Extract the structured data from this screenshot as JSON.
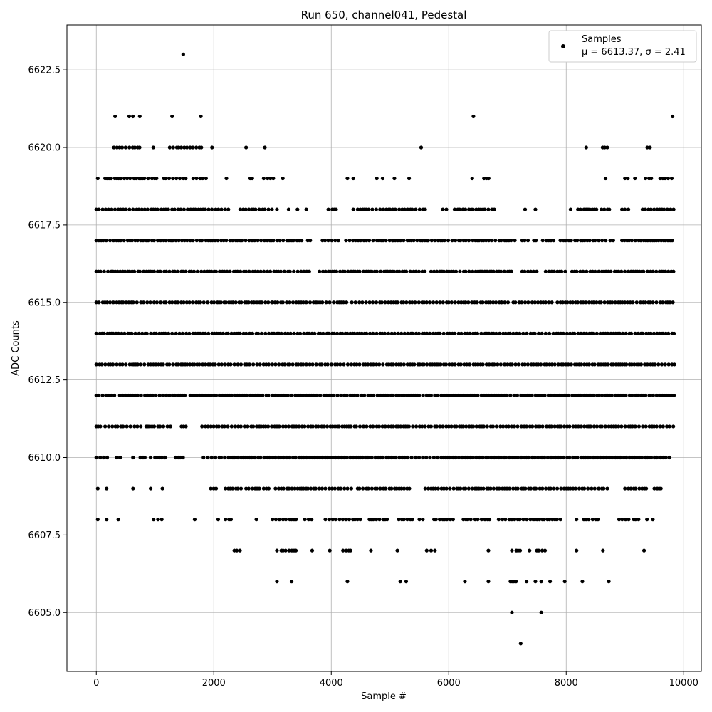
{
  "chart_data": {
    "type": "scatter",
    "title": "Run 650, channel041, Pedestal",
    "xlabel": "Sample #",
    "ylabel": "ADC Counts",
    "xlim": [
      -500,
      10300
    ],
    "ylim": [
      6603.1,
      6623.95
    ],
    "xticks": [
      0,
      2000,
      4000,
      6000,
      8000,
      10000
    ],
    "yticks": [
      6605.0,
      6607.5,
      6610.0,
      6612.5,
      6615.0,
      6617.5,
      6620.0,
      6622.5
    ],
    "grid": true,
    "legend_position": "top-right",
    "marker_color": "#000000",
    "series": [
      {
        "name": "Samples",
        "stats_label": "μ = 6613.37, σ = 2.41",
        "total_samples": 9850,
        "level_ranges": [
          {
            "y": 6623,
            "ranges": [
              [
                1460,
                1500
              ]
            ]
          },
          {
            "y": 6621,
            "ranges": [
              [
                300,
                340
              ],
              [
                560,
                660
              ],
              [
                720,
                760
              ],
              [
                1270,
                1310
              ],
              [
                1760,
                1800
              ],
              [
                6400,
                6440
              ],
              [
                9790,
                9830
              ]
            ]
          },
          {
            "y": 6620,
            "ranges": [
              [
                300,
                760
              ],
              [
                950,
                990
              ],
              [
                1250,
                1800
              ],
              [
                1950,
                1990
              ],
              [
                2530,
                2570
              ],
              [
                2850,
                2890
              ],
              [
                5510,
                5550
              ],
              [
                8320,
                8360
              ],
              [
                8620,
                8720
              ],
              [
                9380,
                9450
              ]
            ]
          },
          {
            "y": 6619,
            "ranges": [
              [
                0,
                50
              ],
              [
                150,
                1050
              ],
              [
                1150,
                1550
              ],
              [
                1650,
                1900
              ],
              [
                2190,
                2240
              ],
              [
                2620,
                2700
              ],
              [
                2850,
                3050
              ],
              [
                3150,
                3200
              ],
              [
                4250,
                4300
              ],
              [
                4350,
                4400
              ],
              [
                4750,
                4800
              ],
              [
                4850,
                4900
              ],
              [
                5050,
                5100
              ],
              [
                5300,
                5350
              ],
              [
                6380,
                6420
              ],
              [
                6600,
                6680
              ],
              [
                8650,
                8690
              ],
              [
                9000,
                9080
              ],
              [
                9150,
                9190
              ],
              [
                9350,
                9450
              ],
              [
                9600,
                9800
              ]
            ]
          },
          {
            "y": 6618,
            "ranges": [
              [
                0,
                1150
              ],
              [
                1150,
                2250
              ],
              [
                2450,
                3050
              ],
              [
                3050,
                3100
              ],
              [
                3250,
                3300
              ],
              [
                3400,
                3450
              ],
              [
                3550,
                3600
              ],
              [
                3950,
                4100
              ],
              [
                4350,
                4400
              ],
              [
                4450,
                5000
              ],
              [
                5000,
                5300
              ],
              [
                5300,
                5600
              ],
              [
                5900,
                6000
              ],
              [
                6100,
                6250
              ],
              [
                6250,
                6750
              ],
              [
                6750,
                6800
              ],
              [
                7280,
                7320
              ],
              [
                7450,
                7500
              ],
              [
                8050,
                8100
              ],
              [
                8200,
                8400
              ],
              [
                8400,
                8550
              ],
              [
                8600,
                8750
              ],
              [
                8950,
                9100
              ],
              [
                9300,
                9500
              ],
              [
                9550,
                9850
              ]
            ]
          },
          {
            "y": 6617,
            "ranges": [
              [
                0,
                3300
              ],
              [
                3300,
                3500
              ],
              [
                3600,
                3700
              ],
              [
                3850,
                4150
              ],
              [
                4250,
                5050
              ],
              [
                5050,
                5550
              ],
              [
                5550,
                5650
              ],
              [
                5650,
                7150
              ],
              [
                7250,
                7350
              ],
              [
                7450,
                7550
              ],
              [
                7600,
                7800
              ],
              [
                7900,
                8100
              ],
              [
                8150,
                8700
              ],
              [
                8750,
                8850
              ],
              [
                8950,
                9850
              ]
            ]
          },
          {
            "y": 6616,
            "ranges": [
              [
                0,
                2550
              ],
              [
                2550,
                3600
              ],
              [
                3600,
                3650
              ],
              [
                3800,
                5650
              ],
              [
                5700,
                7100
              ],
              [
                7250,
                7550
              ],
              [
                7650,
                7800
              ],
              [
                7850,
                8000
              ],
              [
                8100,
                9850
              ]
            ]
          },
          {
            "y": 6615,
            "ranges": [
              [
                0,
                3000
              ],
              [
                3000,
                3350
              ],
              [
                3350,
                4300
              ],
              [
                4350,
                5850
              ],
              [
                5850,
                6900
              ],
              [
                6900,
                7050
              ],
              [
                7100,
                7250
              ],
              [
                7300,
                7650
              ],
              [
                7650,
                7800
              ],
              [
                7850,
                9850
              ]
            ]
          },
          {
            "y": 6614,
            "ranges": [
              [
                0,
                9850
              ]
            ]
          },
          {
            "y": 6613,
            "ranges": [
              [
                0,
                9850
              ]
            ]
          },
          {
            "y": 6612,
            "ranges": [
              [
                0,
                350
              ],
              [
                400,
                1250
              ],
              [
                1300,
                1550
              ],
              [
                1600,
                9850
              ]
            ]
          },
          {
            "y": 6611,
            "ranges": [
              [
                0,
                100
              ],
              [
                150,
                600
              ],
              [
                650,
                800
              ],
              [
                850,
                1300
              ],
              [
                1450,
                1550
              ],
              [
                1800,
                9850
              ]
            ]
          },
          {
            "y": 6610,
            "ranges": [
              [
                0,
                200
              ],
              [
                350,
                450
              ],
              [
                600,
                650
              ],
              [
                750,
                850
              ],
              [
                900,
                950
              ],
              [
                1000,
                1200
              ],
              [
                1350,
                1500
              ],
              [
                1800,
                1850
              ],
              [
                1900,
                2350
              ],
              [
                2350,
                2650
              ],
              [
                2700,
                9800
              ]
            ]
          },
          {
            "y": 6609,
            "ranges": [
              [
                0,
                50
              ],
              [
                150,
                200
              ],
              [
                600,
                650
              ],
              [
                900,
                950
              ],
              [
                1100,
                1150
              ],
              [
                1950,
                2050
              ],
              [
                2200,
                2500
              ],
              [
                2550,
                2800
              ],
              [
                2850,
                2950
              ],
              [
                3050,
                4400
              ],
              [
                4450,
                4550
              ],
              [
                4600,
                5350
              ],
              [
                5600,
                6200
              ],
              [
                6200,
                6600
              ],
              [
                6650,
                8750
              ],
              [
                9000,
                9400
              ],
              [
                9500,
                9650
              ]
            ]
          },
          {
            "y": 6608,
            "ranges": [
              [
                0,
                50
              ],
              [
                150,
                200
              ],
              [
                350,
                400
              ],
              [
                950,
                1000
              ],
              [
                1050,
                1150
              ],
              [
                1650,
                1700
              ],
              [
                2050,
                2100
              ],
              [
                2200,
                2350
              ],
              [
                2700,
                2750
              ],
              [
                3000,
                3450
              ],
              [
                3550,
                3700
              ],
              [
                3900,
                4200
              ],
              [
                4250,
                4550
              ],
              [
                4650,
                5000
              ],
              [
                5150,
                5400
              ],
              [
                5500,
                5600
              ],
              [
                5750,
                6100
              ],
              [
                6250,
                6400
              ],
              [
                6450,
                6700
              ],
              [
                6850,
                7950
              ],
              [
                8150,
                8200
              ],
              [
                8300,
                8400
              ],
              [
                8450,
                8550
              ],
              [
                8900,
                9100
              ],
              [
                9150,
                9250
              ],
              [
                9350,
                9400
              ],
              [
                9450,
                9500
              ]
            ]
          },
          {
            "y": 6607,
            "ranges": [
              [
                2350,
                2450
              ],
              [
                3050,
                3100
              ],
              [
                3150,
                3400
              ],
              [
                3650,
                3700
              ],
              [
                3950,
                4000
              ],
              [
                4200,
                4350
              ],
              [
                4650,
                4700
              ],
              [
                5100,
                5150
              ],
              [
                5600,
                5650
              ],
              [
                5700,
                5800
              ],
              [
                6650,
                6700
              ],
              [
                7050,
                7100
              ],
              [
                7150,
                7250
              ],
              [
                7350,
                7400
              ],
              [
                7500,
                7650
              ],
              [
                8150,
                8200
              ],
              [
                8600,
                8650
              ],
              [
                9300,
                9350
              ]
            ]
          },
          {
            "y": 6606,
            "ranges": [
              [
                3050,
                3100
              ],
              [
                3300,
                3350
              ],
              [
                4250,
                4300
              ],
              [
                5150,
                5200
              ],
              [
                5250,
                5300
              ],
              [
                6250,
                6300
              ],
              [
                6650,
                6700
              ],
              [
                7050,
                7150
              ],
              [
                7300,
                7350
              ],
              [
                7450,
                7500
              ],
              [
                7550,
                7600
              ],
              [
                7700,
                7750
              ],
              [
                7950,
                8000
              ],
              [
                8250,
                8300
              ],
              [
                8700,
                8750
              ]
            ]
          },
          {
            "y": 6605,
            "ranges": [
              [
                7050,
                7100
              ],
              [
                7550,
                7600
              ]
            ]
          },
          {
            "y": 6604,
            "ranges": [
              [
                7200,
                7250
              ]
            ]
          }
        ]
      }
    ]
  }
}
